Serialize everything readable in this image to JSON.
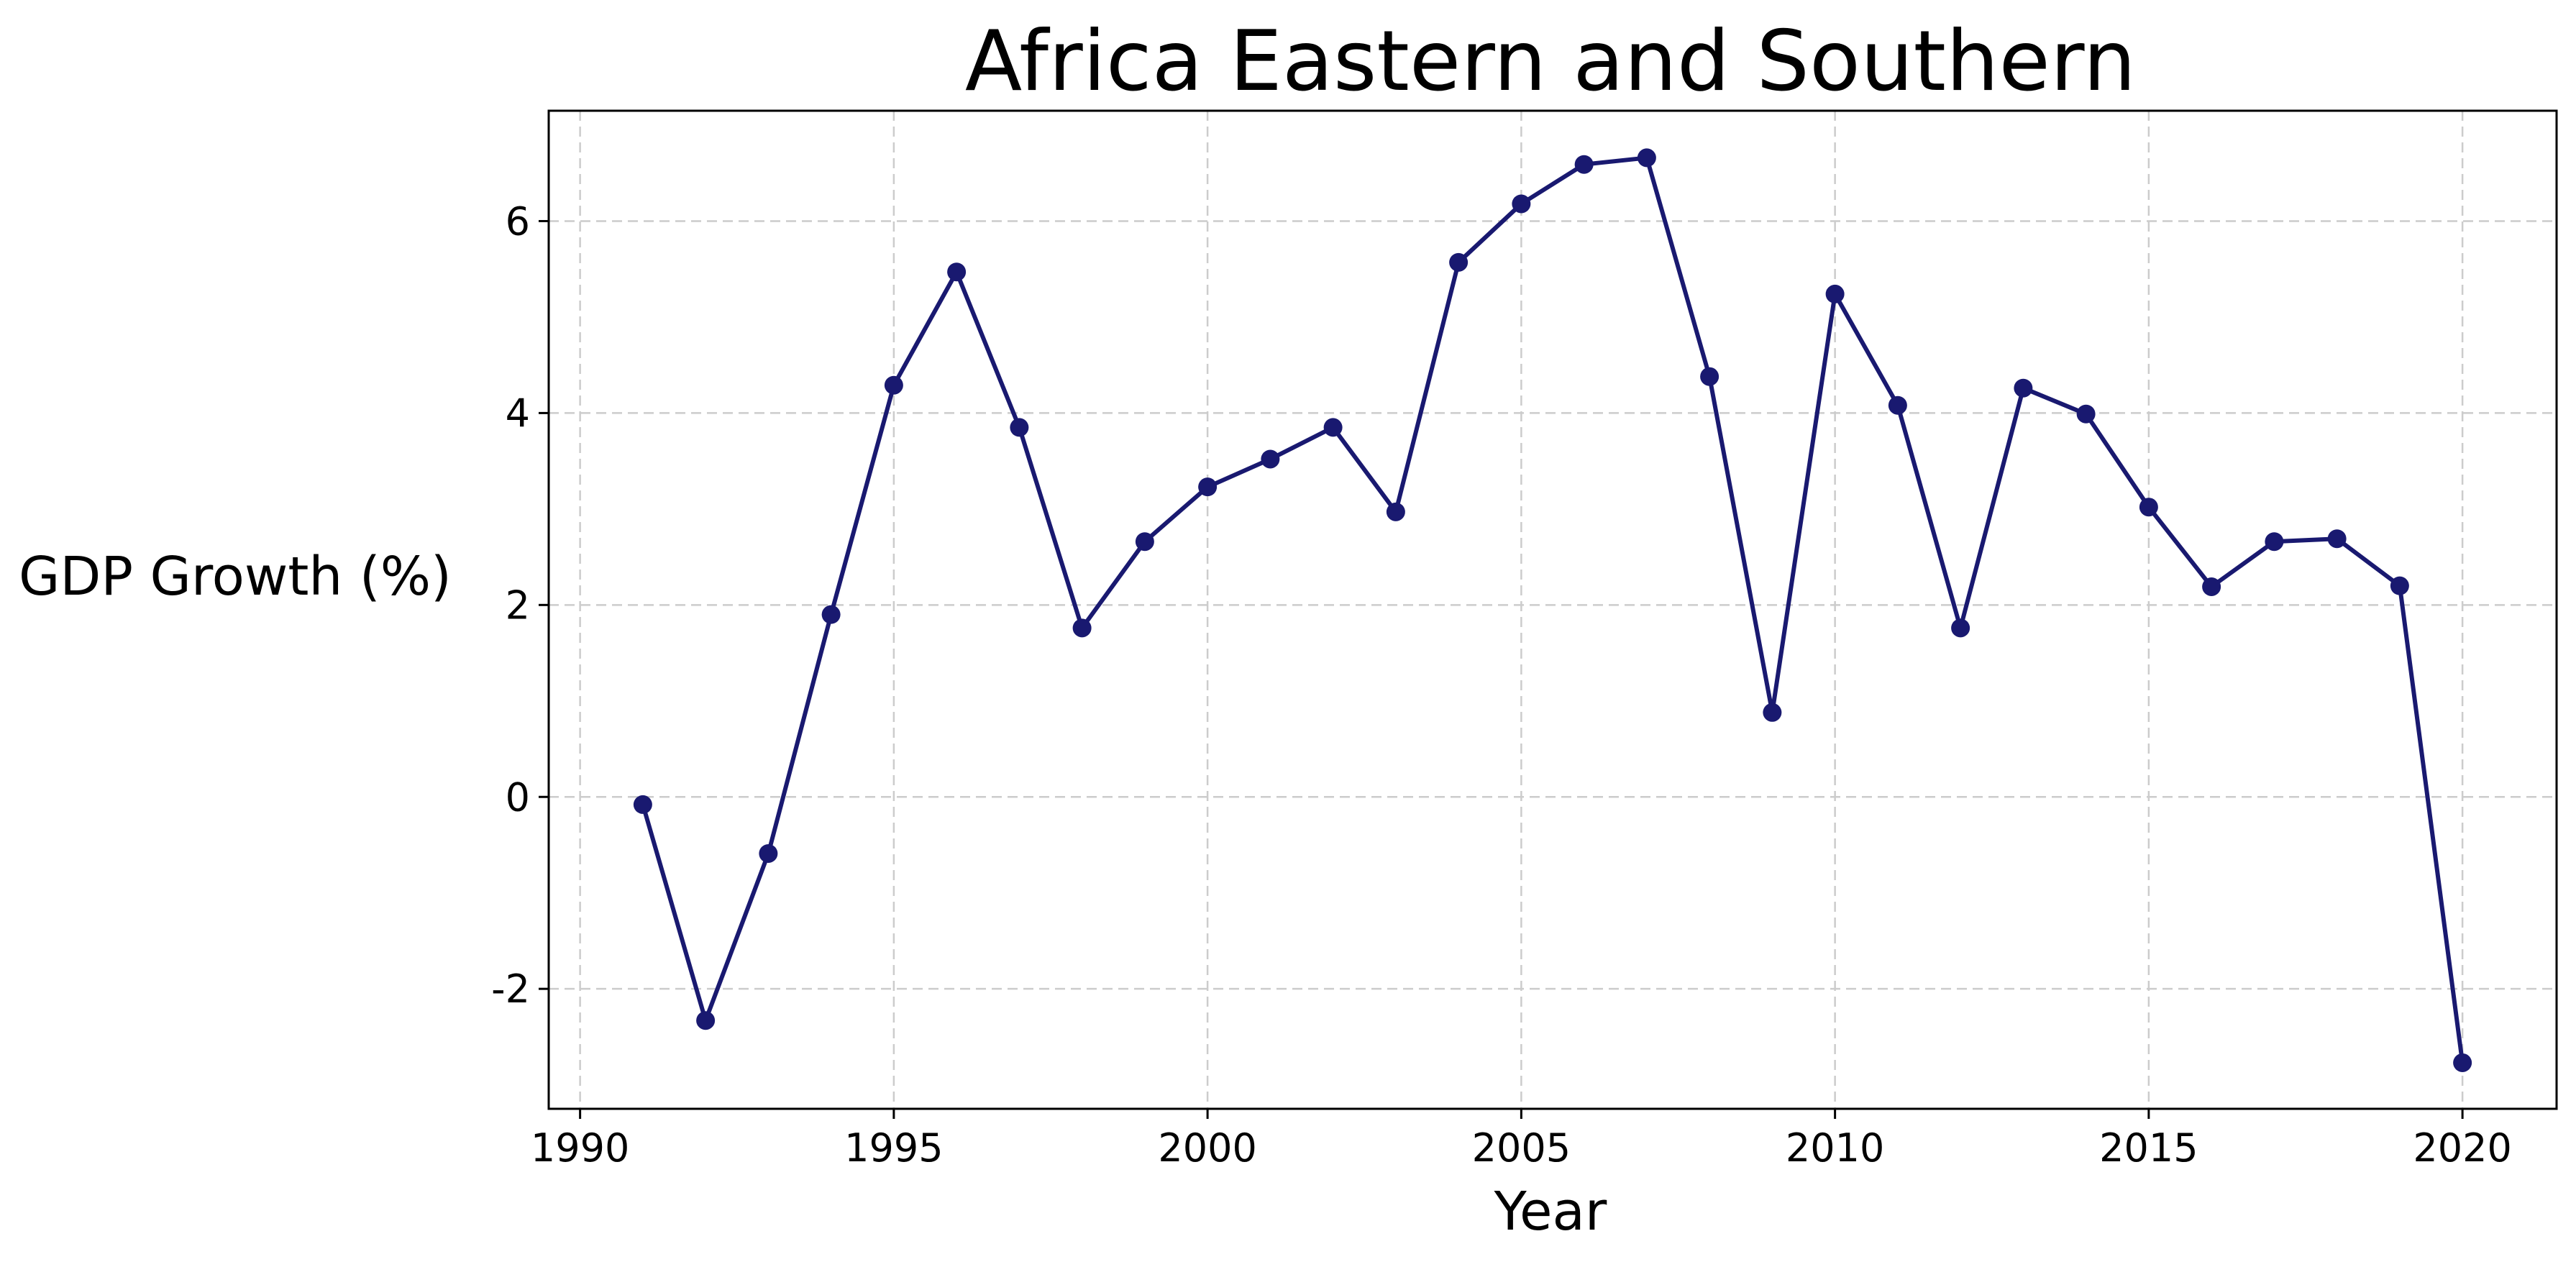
{
  "chart_data": {
    "type": "line",
    "title": "Africa Eastern and Southern",
    "xlabel": "Year",
    "ylabel": "GDP Growth (%)",
    "xlim": [
      1989.5,
      2021.5
    ],
    "ylim": [
      -3.25,
      7.15
    ],
    "xticks": [
      1990,
      1995,
      2000,
      2005,
      2010,
      2015,
      2020
    ],
    "yticks": [
      -2,
      0,
      2,
      4,
      6
    ],
    "grid": true,
    "line_color": "#191970",
    "x": [
      1991,
      1992,
      1993,
      1994,
      1995,
      1996,
      1997,
      1998,
      1999,
      2000,
      2001,
      2002,
      2003,
      2004,
      2005,
      2006,
      2007,
      2008,
      2009,
      2010,
      2011,
      2012,
      2013,
      2014,
      2015,
      2016,
      2017,
      2018,
      2019,
      2020
    ],
    "series": [
      {
        "values": [
          -0.08,
          -2.33,
          -0.59,
          1.9,
          4.29,
          5.47,
          3.85,
          1.76,
          2.66,
          3.23,
          3.52,
          3.85,
          2.97,
          5.57,
          6.18,
          6.59,
          6.66,
          4.38,
          0.88,
          5.24,
          4.08,
          1.76,
          4.26,
          3.99,
          3.02,
          2.19,
          2.66,
          2.69,
          2.2,
          -2.77
        ]
      }
    ]
  }
}
